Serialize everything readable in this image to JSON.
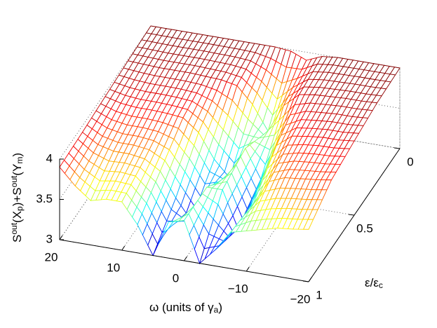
{
  "chart_data": {
    "type": "surface",
    "xlabel": [
      "ω (units of γ",
      "a",
      ")"
    ],
    "ylabel": [
      "ε/ε",
      "c"
    ],
    "zlabel": [
      "S",
      "out",
      "(X",
      "p",
      ")+S",
      "out",
      "(Y",
      "m",
      ")"
    ],
    "x": [
      20,
      17.5,
      15,
      12.5,
      10,
      7.5,
      5,
      2.5,
      0,
      -2.5,
      -5,
      -7.5,
      -10,
      -12.5,
      -15,
      -17.5,
      -20
    ],
    "y": [
      0,
      0.25,
      0.5,
      0.75,
      1
    ],
    "values": [
      [
        4,
        4,
        4,
        4,
        4,
        4,
        4,
        4,
        4,
        3.98,
        3.9,
        3.98,
        4,
        4,
        4,
        4,
        4
      ],
      [
        3.98,
        3.97,
        3.96,
        3.96,
        3.96,
        3.95,
        3.94,
        3.9,
        3.7,
        3.4,
        3.75,
        3.92,
        3.95,
        3.96,
        3.97,
        3.97,
        3.98
      ],
      [
        3.95,
        3.9,
        3.88,
        3.88,
        3.87,
        3.85,
        3.7,
        3.4,
        3.2,
        3.6,
        3.25,
        3.7,
        3.85,
        3.88,
        3.9,
        3.9,
        3.92
      ],
      [
        3.92,
        3.8,
        3.75,
        3.75,
        3.72,
        3.6,
        3.3,
        3.05,
        3.5,
        3.5,
        3.05,
        3.4,
        3.7,
        3.78,
        3.8,
        3.82,
        3.85
      ],
      [
        3.9,
        3.7,
        3.55,
        3.6,
        3.6,
        3.35,
        3.0,
        3.45,
        3.5,
        3.0,
        3.2,
        3.45,
        3.5,
        3.55,
        3.6,
        3.62,
        3.65
      ]
    ],
    "xlim": [
      -20,
      20
    ],
    "xticks": [
      {
        "value": -20,
        "label": "−20"
      },
      {
        "value": -10,
        "label": "−10"
      },
      0,
      10,
      20
    ],
    "ylim": [
      0,
      1
    ],
    "yticks": [
      0,
      0.5,
      1
    ],
    "zlim": [
      3,
      4
    ],
    "zticks": [
      3,
      3.5,
      4
    ],
    "colormap": "jet",
    "grid": true
  }
}
